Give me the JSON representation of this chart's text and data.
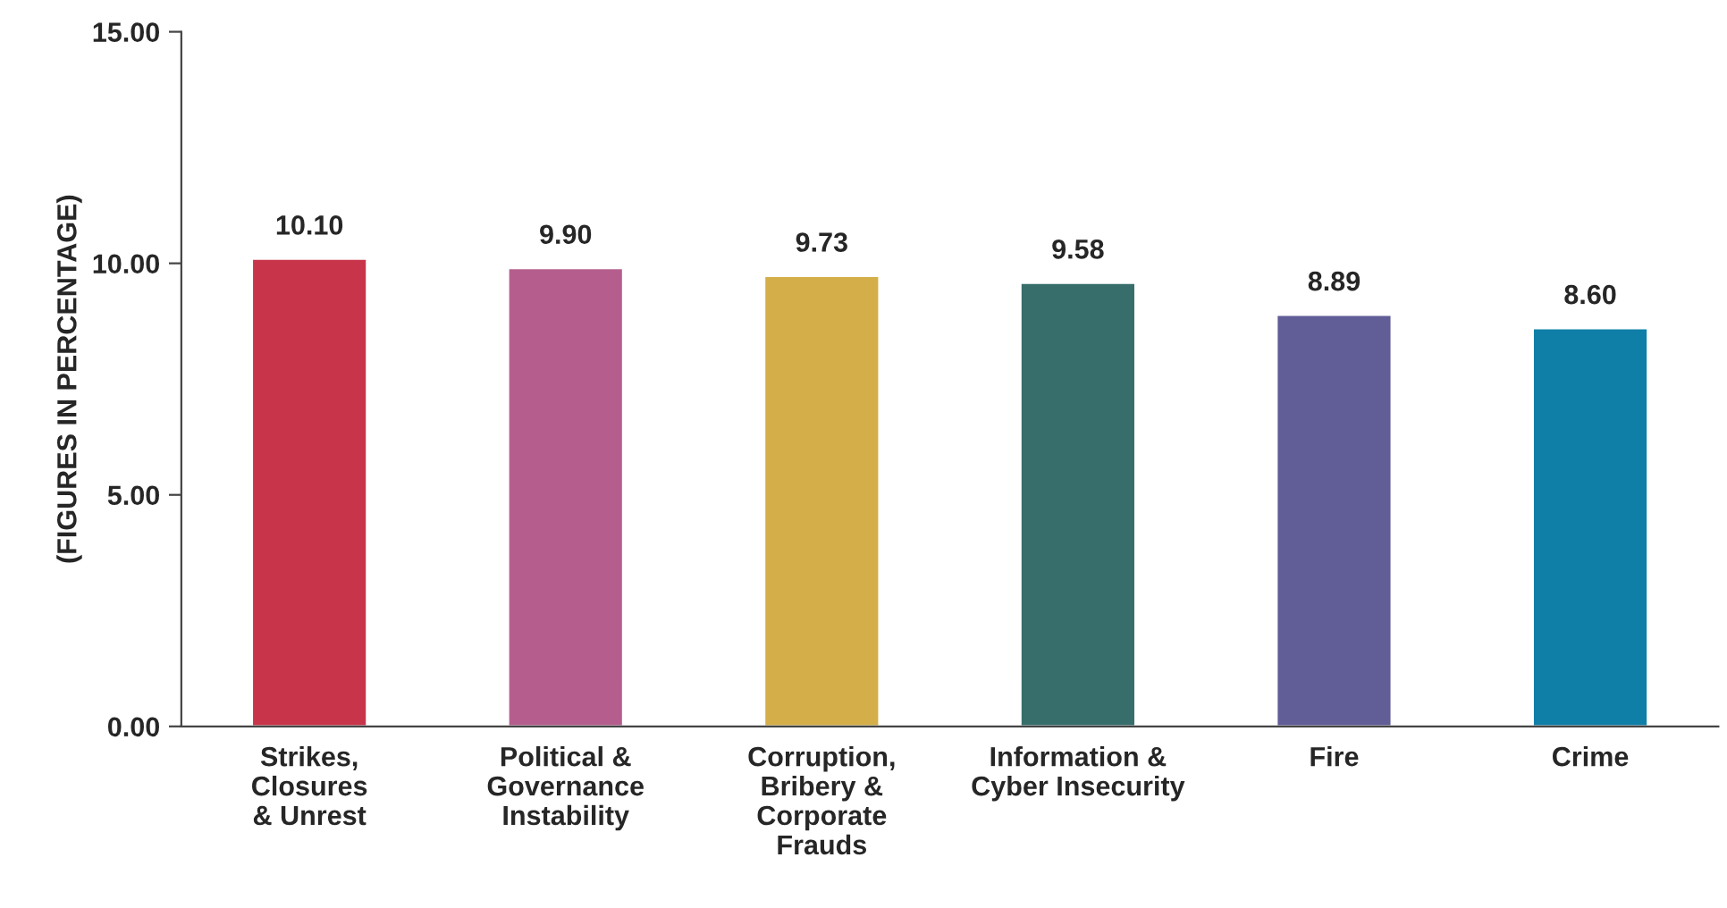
{
  "chart_data": {
    "type": "bar",
    "ylabel": "(FIGURES IN PERCENTAGE)",
    "categories": [
      "Strikes,\nClosures\n& Unrest",
      "Political &\nGovernance\nInstability",
      "Corruption,\nBribery &\nCorporate\nFrauds",
      "Information &\nCyber Insecurity",
      "Fire",
      "Crime"
    ],
    "values": [
      10.1,
      9.9,
      9.73,
      9.58,
      8.89,
      8.6
    ],
    "colors": [
      "#c8354a",
      "#b55e8e",
      "#d4ae48",
      "#376e6c",
      "#615d97",
      "#0f7fa8"
    ],
    "value_labels": [
      "10.10",
      "9.90",
      "9.73",
      "9.58",
      "8.89",
      "8.60"
    ],
    "ylim": [
      0,
      15
    ],
    "yticks": [
      {
        "value": 0,
        "label": "0.00"
      },
      {
        "value": 5,
        "label": "5.00"
      },
      {
        "value": 10,
        "label": "10.00"
      },
      {
        "value": 15,
        "label": "15.00"
      }
    ],
    "grid": false,
    "legend": false
  }
}
